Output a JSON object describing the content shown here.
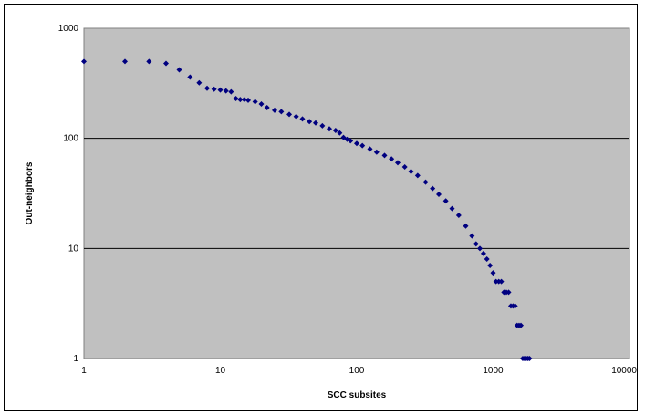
{
  "chart_data": {
    "type": "scatter",
    "title": "",
    "xlabel": "SCC subsites",
    "ylabel": "Out-neighbors",
    "x_scale": "log",
    "y_scale": "log",
    "xlim": [
      1,
      10000
    ],
    "ylim": [
      1,
      1000
    ],
    "x_ticks": [
      "1",
      "10",
      "100",
      "1000",
      "10000"
    ],
    "y_ticks": [
      "1",
      "10",
      "100",
      "1000"
    ],
    "grid": "horizontal major gridlines",
    "legend": "none",
    "colors": {
      "plot_area": "#c0c0c0",
      "marker": "#000080",
      "grid": "#000000"
    },
    "series": [
      {
        "marker": "diamond",
        "x": [
          1,
          2,
          3,
          4,
          5,
          6,
          7,
          8,
          9,
          10,
          11,
          12,
          13,
          14,
          15,
          16,
          18,
          20,
          22,
          25,
          28,
          32,
          36,
          40,
          45,
          50,
          56,
          63,
          70,
          75,
          80,
          85,
          90,
          100,
          110,
          125,
          140,
          160,
          180,
          200,
          225,
          250,
          280,
          320,
          360,
          400,
          450,
          500,
          560,
          630,
          700,
          750,
          800,
          850,
          900,
          950,
          1000,
          1050,
          1100,
          1150,
          1200,
          1250,
          1300,
          1350,
          1400,
          1450,
          1500,
          1550,
          1600,
          1650,
          1700,
          1750,
          1800,
          1850
        ],
        "y": [
          500,
          500,
          500,
          480,
          420,
          360,
          320,
          285,
          280,
          275,
          270,
          265,
          230,
          225,
          225,
          222,
          215,
          205,
          190,
          180,
          175,
          165,
          158,
          150,
          142,
          138,
          130,
          122,
          118,
          112,
          102,
          98,
          95,
          90,
          86,
          80,
          75,
          70,
          65,
          60,
          55,
          50,
          46,
          40,
          35,
          31,
          27,
          23,
          20,
          16,
          13,
          11,
          10,
          9,
          8,
          7,
          6,
          5,
          5,
          5,
          4,
          4,
          4,
          3,
          3,
          3,
          2,
          2,
          2,
          1,
          1,
          1,
          1,
          1
        ]
      }
    ]
  }
}
